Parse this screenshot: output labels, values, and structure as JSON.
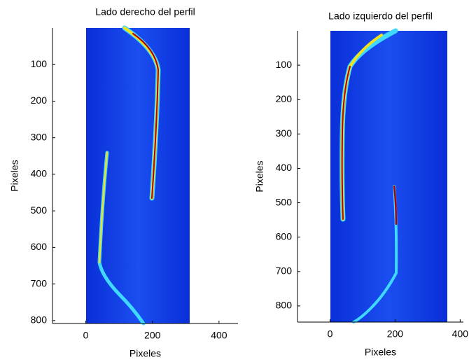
{
  "chart_data": [
    {
      "type": "image",
      "title": "Lado derecho del perfil",
      "xlabel": "Pixeles",
      "ylabel": "Pixeles",
      "xlim": [
        -100,
        457
      ],
      "ylim": [
        0,
        808
      ],
      "y_reversed": true,
      "xticks": [
        0,
        200,
        400
      ],
      "yticks": [
        100,
        200,
        300,
        400,
        500,
        600,
        700,
        800
      ]
    },
    {
      "type": "image",
      "title": "Lado izquierdo del perfil",
      "xlabel": "Pixeles",
      "ylabel": "Pixeles",
      "xlim": [
        -100,
        410
      ],
      "ylim": [
        0,
        847
      ],
      "y_reversed": true,
      "xticks": [
        0,
        200,
        400
      ],
      "yticks": [
        100,
        200,
        300,
        400,
        500,
        600,
        700,
        800
      ]
    }
  ]
}
